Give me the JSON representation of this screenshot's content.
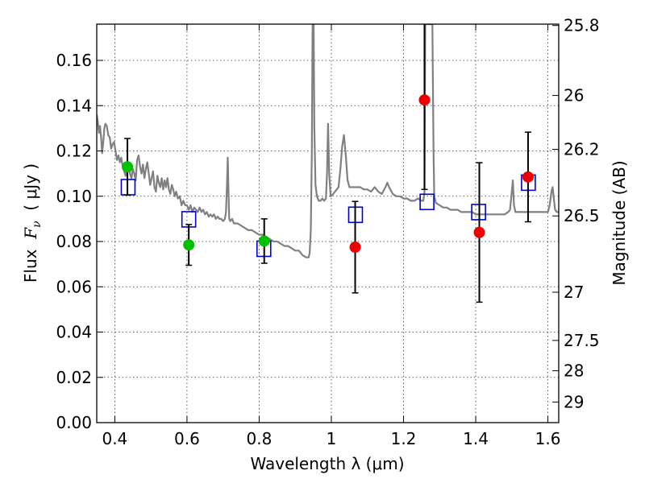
{
  "chart_data": {
    "type": "scatter",
    "xlabel": "Wavelength  λ (μm)",
    "ylabel": "Flux  F_ν  ( μJy )",
    "ylabel_parts": {
      "prefix": "Flux  ",
      "symbol": "F",
      "subscript": "ν",
      "unit": "  ( μJy )"
    },
    "y2label": "Magnitude (AB)",
    "xlim": [
      0.35,
      1.63
    ],
    "ylim": [
      0.0,
      0.176
    ],
    "x_ticks": [
      {
        "value": 0.4,
        "label": "0.4"
      },
      {
        "value": 0.6,
        "label": "0.6"
      },
      {
        "value": 0.8,
        "label": "0.8"
      },
      {
        "value": 1.0,
        "label": "1"
      },
      {
        "value": 1.2,
        "label": "1.2"
      },
      {
        "value": 1.4,
        "label": "1.4"
      },
      {
        "value": 1.6,
        "label": "1.6"
      }
    ],
    "y_ticks": [
      {
        "value": 0.0,
        "label": "0.00"
      },
      {
        "value": 0.02,
        "label": "0.02"
      },
      {
        "value": 0.04,
        "label": "0.04"
      },
      {
        "value": 0.06,
        "label": "0.06"
      },
      {
        "value": 0.08,
        "label": "0.08"
      },
      {
        "value": 0.1,
        "label": "0.10"
      },
      {
        "value": 0.12,
        "label": "0.12"
      },
      {
        "value": 0.14,
        "label": "0.14"
      },
      {
        "value": 0.16,
        "label": "0.16"
      }
    ],
    "y2_ticks": [
      {
        "label": "25.8",
        "flux": 0.1754
      },
      {
        "label": "26",
        "flux": 0.1445
      },
      {
        "label": "26.2",
        "flux": 0.1207
      },
      {
        "label": "26.5",
        "flux": 0.0913
      },
      {
        "label": "27",
        "flux": 0.0576
      },
      {
        "label": "27.5",
        "flux": 0.0363
      },
      {
        "label": "28",
        "flux": 0.0229
      },
      {
        "label": "29",
        "flux": 0.0091
      }
    ],
    "grid": true,
    "colors": {
      "model": "#808080",
      "green": "#00c000",
      "red": "#ee0000",
      "model_box": "#0000cc",
      "errorbar": "#000000"
    },
    "series": [
      {
        "kind": "line",
        "color": "#808080",
        "points": [
          [
            0.35,
            0.136
          ],
          [
            0.353,
            0.133
          ],
          [
            0.356,
            0.128
          ],
          [
            0.359,
            0.131
          ],
          [
            0.362,
            0.126
          ],
          [
            0.365,
            0.119
          ],
          [
            0.368,
            0.124
          ],
          [
            0.371,
            0.13
          ],
          [
            0.374,
            0.132
          ],
          [
            0.378,
            0.131
          ],
          [
            0.382,
            0.127
          ],
          [
            0.386,
            0.126
          ],
          [
            0.39,
            0.121
          ],
          [
            0.394,
            0.123
          ],
          [
            0.398,
            0.124
          ],
          [
            0.402,
            0.12
          ],
          [
            0.406,
            0.116
          ],
          [
            0.41,
            0.118
          ],
          [
            0.414,
            0.115
          ],
          [
            0.418,
            0.117
          ],
          [
            0.422,
            0.113
          ],
          [
            0.426,
            0.111
          ],
          [
            0.43,
            0.109
          ],
          [
            0.434,
            0.112
          ],
          [
            0.438,
            0.114
          ],
          [
            0.442,
            0.11
          ],
          [
            0.446,
            0.108
          ],
          [
            0.45,
            0.112
          ],
          [
            0.454,
            0.11
          ],
          [
            0.458,
            0.107
          ],
          [
            0.462,
            0.116
          ],
          [
            0.466,
            0.118
          ],
          [
            0.47,
            0.113
          ],
          [
            0.474,
            0.11
          ],
          [
            0.478,
            0.114
          ],
          [
            0.482,
            0.108
          ],
          [
            0.486,
            0.112
          ],
          [
            0.49,
            0.115
          ],
          [
            0.494,
            0.11
          ],
          [
            0.498,
            0.105
          ],
          [
            0.502,
            0.108
          ],
          [
            0.506,
            0.111
          ],
          [
            0.51,
            0.104
          ],
          [
            0.514,
            0.102
          ],
          [
            0.518,
            0.109
          ],
          [
            0.522,
            0.106
          ],
          [
            0.526,
            0.104
          ],
          [
            0.53,
            0.108
          ],
          [
            0.534,
            0.103
          ],
          [
            0.538,
            0.107
          ],
          [
            0.542,
            0.104
          ],
          [
            0.546,
            0.108
          ],
          [
            0.55,
            0.103
          ],
          [
            0.554,
            0.101
          ],
          [
            0.558,
            0.105
          ],
          [
            0.562,
            0.103
          ],
          [
            0.566,
            0.1
          ],
          [
            0.57,
            0.102
          ],
          [
            0.575,
            0.099
          ],
          [
            0.58,
            0.1
          ],
          [
            0.585,
            0.096
          ],
          [
            0.59,
            0.098
          ],
          [
            0.595,
            0.096
          ],
          [
            0.6,
            0.096
          ],
          [
            0.605,
            0.094
          ],
          [
            0.61,
            0.096
          ],
          [
            0.615,
            0.093
          ],
          [
            0.62,
            0.095
          ],
          [
            0.625,
            0.094
          ],
          [
            0.63,
            0.093
          ],
          [
            0.635,
            0.095
          ],
          [
            0.64,
            0.093
          ],
          [
            0.645,
            0.094
          ],
          [
            0.65,
            0.092
          ],
          [
            0.655,
            0.093
          ],
          [
            0.66,
            0.091
          ],
          [
            0.665,
            0.092
          ],
          [
            0.67,
            0.091
          ],
          [
            0.675,
            0.092
          ],
          [
            0.68,
            0.09
          ],
          [
            0.685,
            0.091
          ],
          [
            0.69,
            0.09
          ],
          [
            0.695,
            0.09
          ],
          [
            0.7,
            0.089
          ],
          [
            0.705,
            0.09
          ],
          [
            0.708,
            0.093
          ],
          [
            0.711,
            0.106
          ],
          [
            0.713,
            0.117
          ],
          [
            0.715,
            0.102
          ],
          [
            0.717,
            0.09
          ],
          [
            0.72,
            0.089
          ],
          [
            0.725,
            0.09
          ],
          [
            0.73,
            0.088
          ],
          [
            0.74,
            0.088
          ],
          [
            0.75,
            0.087
          ],
          [
            0.76,
            0.086
          ],
          [
            0.77,
            0.085
          ],
          [
            0.78,
            0.085
          ],
          [
            0.79,
            0.084
          ],
          [
            0.8,
            0.083
          ],
          [
            0.81,
            0.083
          ],
          [
            0.82,
            0.082
          ],
          [
            0.83,
            0.081
          ],
          [
            0.84,
            0.08
          ],
          [
            0.85,
            0.08
          ],
          [
            0.86,
            0.079
          ],
          [
            0.87,
            0.078
          ],
          [
            0.88,
            0.078
          ],
          [
            0.89,
            0.077
          ],
          [
            0.9,
            0.076
          ],
          [
            0.91,
            0.076
          ],
          [
            0.92,
            0.074
          ],
          [
            0.93,
            0.073
          ],
          [
            0.937,
            0.073
          ],
          [
            0.94,
            0.075
          ],
          [
            0.943,
            0.085
          ],
          [
            0.946,
            0.12
          ],
          [
            0.948,
            0.176
          ],
          [
            0.951,
            0.176
          ],
          [
            0.953,
            0.13
          ],
          [
            0.956,
            0.105
          ],
          [
            0.96,
            0.1
          ],
          [
            0.965,
            0.098
          ],
          [
            0.97,
            0.098
          ],
          [
            0.975,
            0.099
          ],
          [
            0.98,
            0.098
          ],
          [
            0.985,
            0.099
          ],
          [
            0.988,
            0.11
          ],
          [
            0.991,
            0.132
          ],
          [
            0.994,
            0.11
          ],
          [
            0.998,
            0.1
          ],
          [
            1.005,
            0.101
          ],
          [
            1.01,
            0.102
          ],
          [
            1.015,
            0.103
          ],
          [
            1.02,
            0.104
          ],
          [
            1.025,
            0.112
          ],
          [
            1.03,
            0.122
          ],
          [
            1.035,
            0.127
          ],
          [
            1.04,
            0.118
          ],
          [
            1.045,
            0.107
          ],
          [
            1.05,
            0.104
          ],
          [
            1.06,
            0.104
          ],
          [
            1.07,
            0.104
          ],
          [
            1.08,
            0.104
          ],
          [
            1.09,
            0.103
          ],
          [
            1.1,
            0.103
          ],
          [
            1.11,
            0.102
          ],
          [
            1.12,
            0.104
          ],
          [
            1.13,
            0.102
          ],
          [
            1.14,
            0.101
          ],
          [
            1.15,
            0.104
          ],
          [
            1.155,
            0.106
          ],
          [
            1.16,
            0.104
          ],
          [
            1.17,
            0.101
          ],
          [
            1.18,
            0.1
          ],
          [
            1.19,
            0.1
          ],
          [
            1.2,
            0.099
          ],
          [
            1.21,
            0.099
          ],
          [
            1.22,
            0.098
          ],
          [
            1.23,
            0.098
          ],
          [
            1.24,
            0.099
          ],
          [
            1.25,
            0.098
          ],
          [
            1.255,
            0.098
          ],
          [
            1.258,
            0.102
          ],
          [
            1.26,
            0.176
          ],
          [
            1.268,
            0.176
          ],
          [
            1.275,
            0.176
          ],
          [
            1.28,
            0.176
          ],
          [
            1.283,
            0.12
          ],
          [
            1.285,
            0.1
          ],
          [
            1.29,
            0.097
          ],
          [
            1.3,
            0.096
          ],
          [
            1.31,
            0.095
          ],
          [
            1.32,
            0.095
          ],
          [
            1.33,
            0.094
          ],
          [
            1.34,
            0.094
          ],
          [
            1.35,
            0.094
          ],
          [
            1.36,
            0.093
          ],
          [
            1.37,
            0.093
          ],
          [
            1.38,
            0.093
          ],
          [
            1.39,
            0.093
          ],
          [
            1.4,
            0.092
          ],
          [
            1.41,
            0.092
          ],
          [
            1.42,
            0.092
          ],
          [
            1.43,
            0.092
          ],
          [
            1.44,
            0.092
          ],
          [
            1.45,
            0.092
          ],
          [
            1.46,
            0.092
          ],
          [
            1.47,
            0.092
          ],
          [
            1.48,
            0.092
          ],
          [
            1.49,
            0.093
          ],
          [
            1.495,
            0.094
          ],
          [
            1.5,
            0.102
          ],
          [
            1.503,
            0.107
          ],
          [
            1.506,
            0.096
          ],
          [
            1.51,
            0.093
          ],
          [
            1.52,
            0.093
          ],
          [
            1.53,
            0.093
          ],
          [
            1.54,
            0.093
          ],
          [
            1.55,
            0.093
          ],
          [
            1.56,
            0.093
          ],
          [
            1.57,
            0.093
          ],
          [
            1.58,
            0.093
          ],
          [
            1.59,
            0.093
          ],
          [
            1.6,
            0.093
          ],
          [
            1.605,
            0.096
          ],
          [
            1.61,
            0.102
          ],
          [
            1.613,
            0.104
          ],
          [
            1.617,
            0.098
          ],
          [
            1.62,
            0.094
          ],
          [
            1.625,
            0.093
          ],
          [
            1.63,
            0.093
          ]
        ]
      },
      {
        "kind": "points",
        "marker": "circle",
        "color": "#00c000",
        "points": [
          {
            "x": 0.435,
            "y": 0.113,
            "err": 0.0125
          },
          {
            "x": 0.605,
            "y": 0.0785,
            "err": 0.009
          },
          {
            "x": 0.814,
            "y": 0.0802,
            "err": 0.0098
          }
        ]
      },
      {
        "kind": "points",
        "marker": "circle",
        "color": "#ee0000",
        "points": [
          {
            "x": 1.066,
            "y": 0.0775,
            "err": 0.0202
          },
          {
            "x": 1.258,
            "y": 0.1425,
            "err": 0.0395
          },
          {
            "x": 1.41,
            "y": 0.084,
            "err": 0.0308
          },
          {
            "x": 1.545,
            "y": 0.1085,
            "err": 0.0198
          }
        ]
      },
      {
        "kind": "points",
        "marker": "square",
        "color": "#0000cc",
        "points": [
          {
            "x": 0.437,
            "y": 0.104
          },
          {
            "x": 0.605,
            "y": 0.0898
          },
          {
            "x": 0.813,
            "y": 0.0768
          },
          {
            "x": 1.067,
            "y": 0.0918
          },
          {
            "x": 1.265,
            "y": 0.0975
          },
          {
            "x": 1.408,
            "y": 0.093
          },
          {
            "x": 1.546,
            "y": 0.106
          }
        ]
      }
    ]
  }
}
